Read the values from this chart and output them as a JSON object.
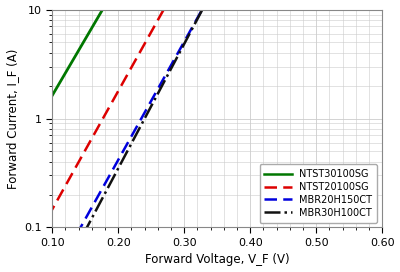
{
  "title": "",
  "xlabel": "Forward Voltage, V_F (V)",
  "ylabel": "Forward Current, I_F (A)",
  "xlim": [
    0.1,
    0.6
  ],
  "ylim": [
    0.1,
    10
  ],
  "xticks": [
    0.1,
    0.2,
    0.3,
    0.4,
    0.5,
    0.6
  ],
  "curves": [
    {
      "label": "NTST30100SG",
      "color": "#007700",
      "linestyle": "solid",
      "linewidth": 2.0,
      "Is": 0.15,
      "n_Vt": 0.042
    },
    {
      "label": "-NTST20100SG",
      "color": "#dd0000",
      "linestyle": "dashed",
      "linewidth": 1.8,
      "Is": 0.012,
      "n_Vt": 0.04
    },
    {
      "label": "--MBR20H150CT",
      "color": "#0000dd",
      "linestyle": "dashed",
      "linewidth": 1.8,
      "Is": 0.0028,
      "n_Vt": 0.04
    },
    {
      "label": "- .MBR30H100CT",
      "color": "#111111",
      "linestyle": "dashdot",
      "linewidth": 1.8,
      "Is": 0.0018,
      "n_Vt": 0.038
    }
  ],
  "legend_labels": [
    "NTST30100SG",
    "NTST20100SG",
    "MBR20H150CT",
    "MBR30H100CT"
  ],
  "legend_linestyles": [
    "solid",
    "dashed",
    "dashed",
    "dashdot"
  ],
  "legend_colors": [
    "#007700",
    "#dd0000",
    "#0000dd",
    "#111111"
  ],
  "background_color": "#ffffff",
  "grid_color": "#cccccc"
}
